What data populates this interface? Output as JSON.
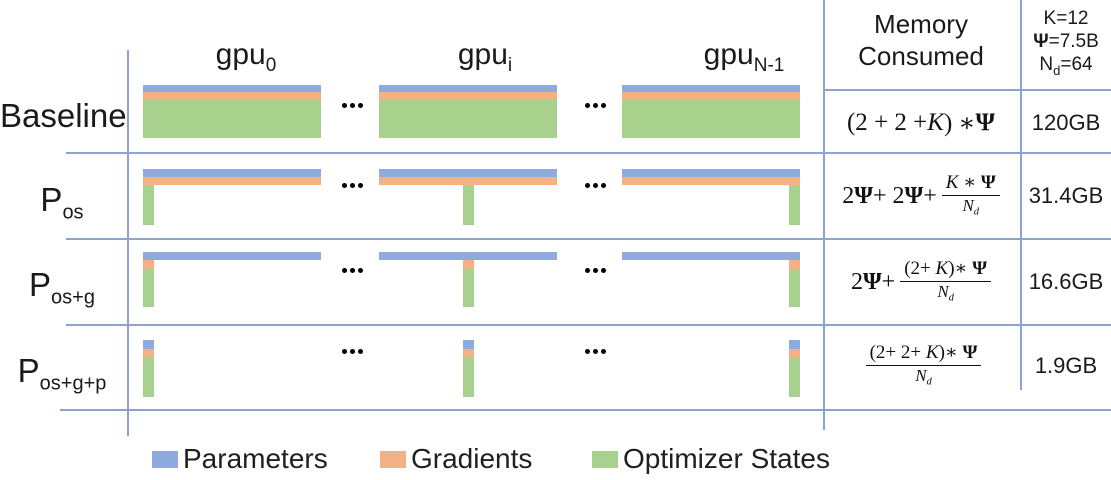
{
  "colors": {
    "parameters": "#8FAADC",
    "gradients": "#F4B183",
    "optimizer_states": "#A9D18E",
    "grid_line": "#8CA3D0"
  },
  "gpu_headers": [
    {
      "base": "gpu",
      "sub": "0"
    },
    {
      "base": "gpu",
      "sub": "i"
    },
    {
      "base": "gpu",
      "sub": "N-1"
    }
  ],
  "memory_header": {
    "line1": "Memory",
    "line2": "Consumed"
  },
  "constants": {
    "k": "K=12",
    "psi_symbol": "Ψ",
    "psi_value": "=7.5B",
    "nd_base": "N",
    "nd_sub": "d",
    "nd_value": "=64"
  },
  "ellipsis": "...",
  "rows": [
    {
      "label": {
        "base": "Baseline",
        "sub": ""
      },
      "partitioning": "none",
      "formula": {
        "lead": [
          {
            "t": "(2 + 2 + "
          },
          {
            "t": "K",
            "i": true
          },
          {
            "t": ") ∗ "
          },
          {
            "t": "Ψ",
            "b": true
          }
        ]
      },
      "memory": "120GB"
    },
    {
      "label": {
        "base": "P",
        "sub": "os"
      },
      "partitioning": "optimizer_states",
      "formula": {
        "lead": [
          {
            "t": "2"
          },
          {
            "t": "Ψ",
            "b": true
          },
          {
            "t": " + 2"
          },
          {
            "t": "Ψ",
            "b": true
          },
          {
            "t": " + "
          }
        ],
        "frac": {
          "num": [
            {
              "t": "K",
              "i": true
            },
            {
              "t": " ∗ "
            },
            {
              "t": "Ψ",
              "b": true
            }
          ],
          "den": [
            {
              "t": "N",
              "i": true
            },
            {
              "t": "d",
              "i": true,
              "sub": true
            }
          ]
        }
      },
      "memory": "31.4GB"
    },
    {
      "label": {
        "base": "P",
        "sub": "os+g"
      },
      "partitioning": "optimizer_states_gradients",
      "formula": {
        "lead": [
          {
            "t": "2"
          },
          {
            "t": "Ψ",
            "b": true
          },
          {
            "t": " + "
          }
        ],
        "frac": {
          "num": [
            {
              "t": "(2+ "
            },
            {
              "t": "K",
              "i": true
            },
            {
              "t": ")∗ "
            },
            {
              "t": "Ψ",
              "b": true
            }
          ],
          "den": [
            {
              "t": "N",
              "i": true
            },
            {
              "t": "d",
              "i": true,
              "sub": true
            }
          ]
        }
      },
      "memory": "16.6GB"
    },
    {
      "label": {
        "base": "P",
        "sub": "os+g+p"
      },
      "partitioning": "all",
      "formula": {
        "lead": [],
        "frac": {
          "num": [
            {
              "t": "(2+ 2+ "
            },
            {
              "t": "K",
              "i": true
            },
            {
              "t": ")∗ "
            },
            {
              "t": "Ψ",
              "b": true
            }
          ],
          "den": [
            {
              "t": "N",
              "i": true
            },
            {
              "t": "d",
              "i": true,
              "sub": true
            }
          ]
        }
      },
      "memory": "1.9GB"
    }
  ],
  "legend": [
    {
      "label": "Parameters",
      "key": "parameters"
    },
    {
      "label": "Gradients",
      "key": "gradients"
    },
    {
      "label": "Optimizer States",
      "key": "optimizer_states"
    }
  ]
}
